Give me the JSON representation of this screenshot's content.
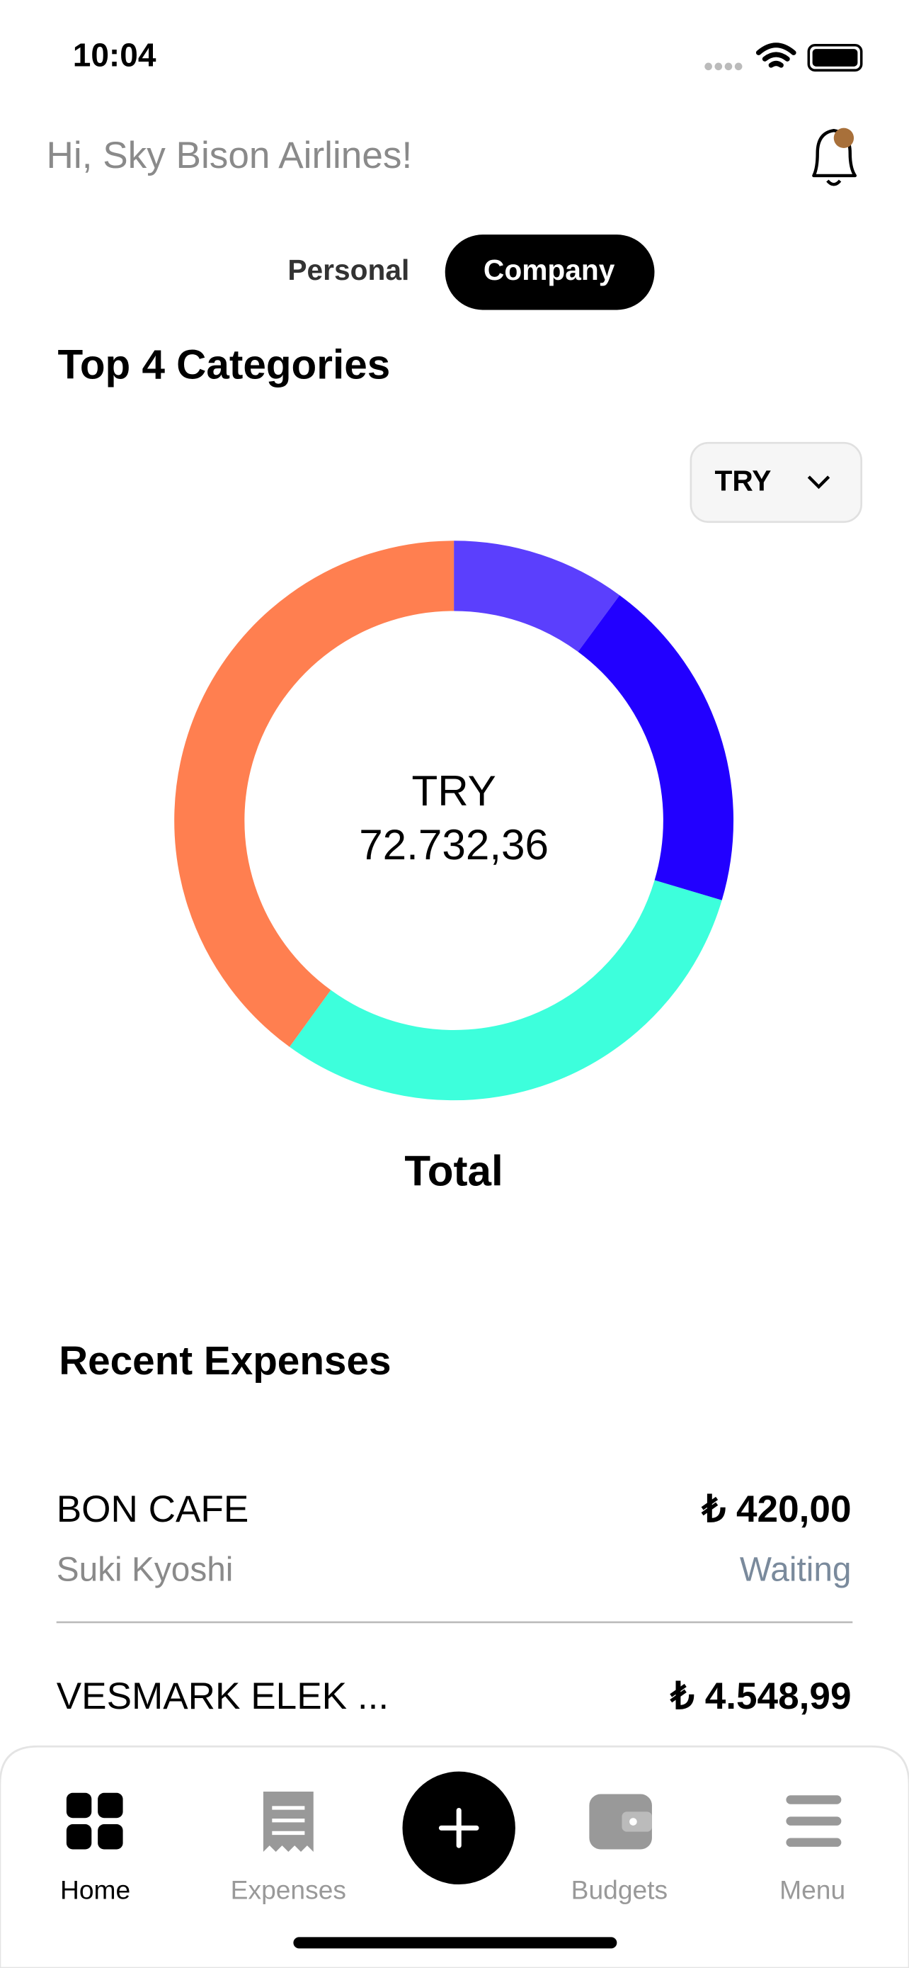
{
  "status_bar": {
    "time": "10:04"
  },
  "header": {
    "greeting": "Hi, Sky Bison Airlines!"
  },
  "tabs": [
    "Personal",
    "Company"
  ],
  "section_title": "Top 4 Categories",
  "currency_selector": "TRY",
  "chart_data": {
    "type": "donut",
    "center_currency": "TRY",
    "center_total": "72.732,36",
    "caption": "Total",
    "values": [
      10.1,
      19.5,
      30.4,
      40.0
    ],
    "colors": [
      "#5b3ffd",
      "#2200ff",
      "#3dffdc",
      "#ff7f50"
    ]
  },
  "recent": {
    "title": "Recent Expenses",
    "items": [
      {
        "merchant": "BON CAFE",
        "amount": "₺ 420,00",
        "person": "Suki Kyoshi",
        "status": "Waiting"
      },
      {
        "merchant": "VESMARK ELEK ...",
        "amount": "₺ 4.548,99"
      }
    ]
  },
  "nav": {
    "items": [
      "Home",
      "Expenses",
      "Budgets",
      "Menu"
    ]
  }
}
